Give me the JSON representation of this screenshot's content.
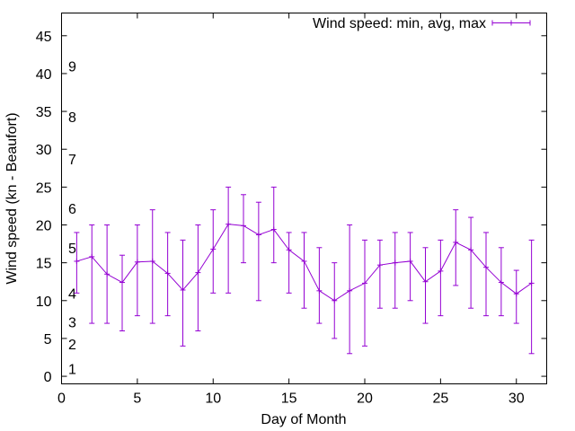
{
  "colors": {
    "series": "#9400d3",
    "axis": "#000000",
    "background": "#ffffff"
  },
  "chart_data": {
    "type": "line",
    "subtype": "errorbars",
    "title": "",
    "xlabel": "Day of Month",
    "ylabel": "Wind speed (kn - Beaufort)",
    "xlim": [
      0,
      32
    ],
    "ylim": [
      -1,
      48
    ],
    "grid": false,
    "legend_position": "top-right",
    "x_ticks": [
      0,
      5,
      10,
      15,
      20,
      25,
      30
    ],
    "y_ticks": [
      0,
      5,
      10,
      15,
      20,
      25,
      30,
      35,
      40,
      45
    ],
    "beaufort_labels": [
      {
        "label": "1",
        "y": 1
      },
      {
        "label": "2",
        "y": 4.3
      },
      {
        "label": "3",
        "y": 7.2
      },
      {
        "label": "4",
        "y": 11
      },
      {
        "label": "5",
        "y": 17
      },
      {
        "label": "6",
        "y": 22.2
      },
      {
        "label": "7",
        "y": 28.7
      },
      {
        "label": "8",
        "y": 34.3
      },
      {
        "label": "9",
        "y": 41
      }
    ],
    "series": [
      {
        "name": "Wind speed: min, avg, max",
        "x": [
          1,
          2,
          3,
          4,
          5,
          6,
          7,
          8,
          9,
          10,
          11,
          12,
          13,
          14,
          15,
          16,
          17,
          18,
          19,
          20,
          21,
          22,
          23,
          24,
          25,
          26,
          27,
          28,
          29,
          30,
          31
        ],
        "avg": [
          15.2,
          15.8,
          13.5,
          12.4,
          15.1,
          15.2,
          13.6,
          11.4,
          13.7,
          16.8,
          20.1,
          19.9,
          18.7,
          19.4,
          16.7,
          15.2,
          11.3,
          10.0,
          11.3,
          12.3,
          14.7,
          15.0,
          15.2,
          12.5,
          13.9,
          17.7,
          16.7,
          14.4,
          12.4,
          10.9,
          12.3
        ],
        "min": [
          11,
          7,
          7,
          6,
          8,
          7,
          8,
          4,
          6,
          11,
          11,
          15,
          10,
          15,
          11,
          9,
          7,
          5,
          3,
          4,
          9,
          9,
          10,
          7,
          8,
          12,
          9,
          8,
          8,
          7,
          3
        ],
        "max": [
          19,
          20,
          20,
          16,
          20,
          22,
          19,
          18,
          20,
          22,
          25,
          24,
          23,
          25,
          19,
          19,
          17,
          15,
          20,
          18,
          18,
          19,
          19,
          17,
          18,
          22,
          21,
          19,
          17,
          14,
          18
        ]
      }
    ]
  }
}
